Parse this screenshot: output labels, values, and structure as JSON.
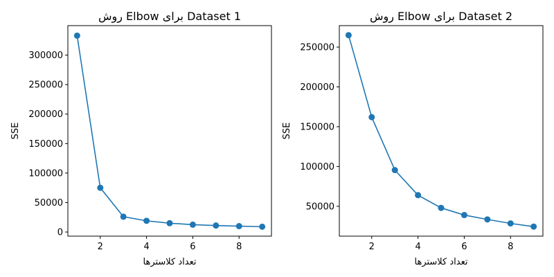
{
  "chart_data": [
    {
      "type": "line",
      "title": "روش Elbow برای Dataset 1",
      "xlabel": "تعداد کلاسترها",
      "ylabel": "SSE",
      "x": [
        1,
        2,
        3,
        4,
        5,
        6,
        7,
        8,
        9
      ],
      "series": [
        {
          "values": [
            333000,
            75000,
            26000,
            19000,
            15000,
            12500,
            11000,
            10000,
            9000
          ]
        }
      ],
      "xlim": [
        0.6,
        9.4
      ],
      "ylim": [
        -7000,
        350000
      ],
      "xticks": [
        2,
        4,
        6,
        8
      ],
      "yticks": [
        0,
        50000,
        100000,
        150000,
        200000,
        250000,
        300000
      ],
      "color": "#1f77b4",
      "marker": "circle",
      "grid": false
    },
    {
      "type": "line",
      "title": "روش Elbow برای Dataset 2",
      "xlabel": "تعداد کلاسترها",
      "ylabel": "SSE",
      "x": [
        1,
        2,
        3,
        4,
        5,
        6,
        7,
        8,
        9
      ],
      "series": [
        {
          "values": [
            265000,
            162000,
            95500,
            64000,
            48000,
            39000,
            33500,
            28500,
            24500
          ]
        }
      ],
      "xlim": [
        0.6,
        9.4
      ],
      "ylim": [
        12500,
        277000
      ],
      "xticks": [
        2,
        4,
        6,
        8
      ],
      "yticks": [
        50000,
        100000,
        150000,
        200000,
        250000
      ],
      "color": "#1f77b4",
      "marker": "circle",
      "grid": false
    }
  ]
}
